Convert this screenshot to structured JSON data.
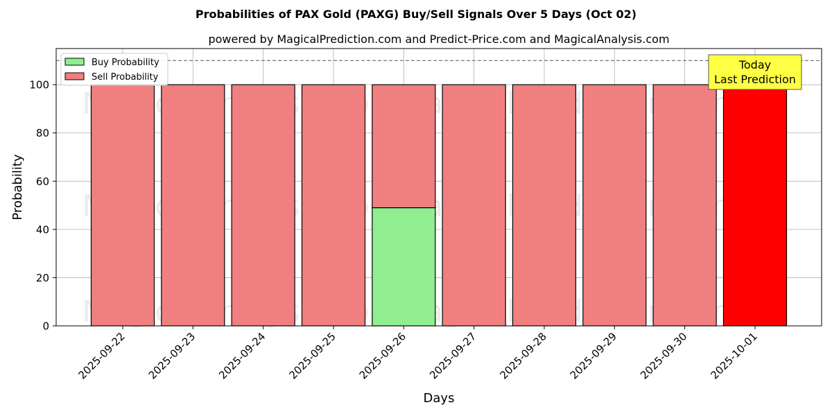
{
  "chart_data": {
    "type": "bar",
    "title": "Probabilities of PAX Gold (PAXG) Buy/Sell Signals Over 5 Days (Oct 02)",
    "subtitle": "powered by MagicalPrediction.com and Predict-Price.com and MagicalAnalysis.com",
    "xlabel": "Days",
    "ylabel": "Probability",
    "ylim": [
      0,
      115
    ],
    "yticks": [
      0,
      20,
      40,
      60,
      80,
      100
    ],
    "grid": true,
    "legend_position": "top-left",
    "reference_line": 110,
    "categories": [
      "2025-09-22",
      "2025-09-23",
      "2025-09-24",
      "2025-09-25",
      "2025-09-26",
      "2025-09-27",
      "2025-09-28",
      "2025-09-29",
      "2025-09-30",
      "2025-10-01"
    ],
    "series": [
      {
        "name": "Buy Probability",
        "color": "#90ee90",
        "values": [
          0,
          0,
          0,
          0,
          49,
          0,
          0,
          0,
          0,
          0
        ]
      },
      {
        "name": "Sell Probability",
        "color": "#f08080",
        "values": [
          100,
          100,
          100,
          100,
          51,
          100,
          100,
          100,
          100,
          100
        ]
      }
    ],
    "highlight": {
      "category": "2025-10-01",
      "color": "#ff0000"
    },
    "annotation": {
      "lines": [
        "Today",
        "Last Prediction"
      ],
      "background": "#ffff44"
    },
    "watermarks": [
      "MagicalAnalysis.com",
      "MagicalPrediction.com"
    ]
  }
}
